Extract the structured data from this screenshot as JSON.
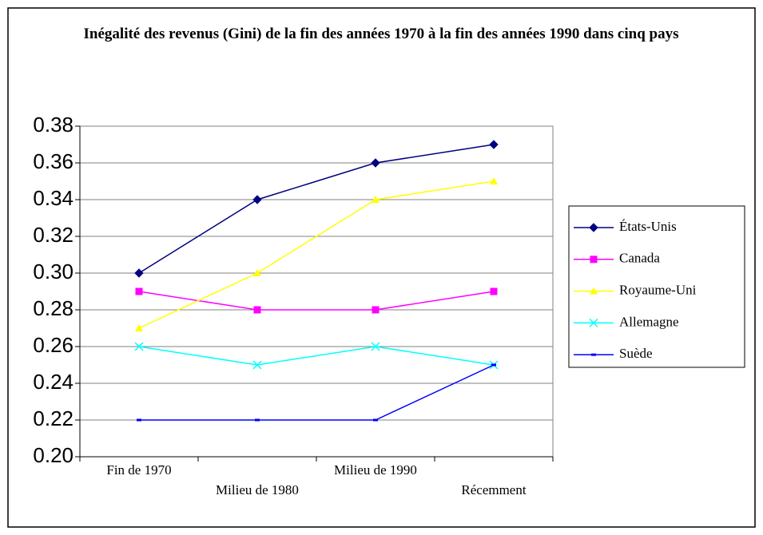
{
  "chart_data": {
    "type": "line",
    "title": "Inégalité des revenus (Gini) de la fin des années 1970 à la fin des années 1990 dans cinq pays",
    "categories": [
      "Fin de 1970",
      "Milieu de 1980",
      "Milieu de 1990",
      "Récemment"
    ],
    "series": [
      {
        "name": "États-Unis",
        "color": "#000080",
        "marker": "diamond",
        "values": [
          0.3,
          0.34,
          0.36,
          0.37
        ]
      },
      {
        "name": "Canada",
        "color": "#ff00ff",
        "marker": "square",
        "values": [
          0.29,
          0.28,
          0.28,
          0.29
        ]
      },
      {
        "name": "Royaume-Uni",
        "color": "#ffff00",
        "marker": "triangle",
        "values": [
          0.27,
          0.3,
          0.34,
          0.35
        ]
      },
      {
        "name": "Allemagne",
        "color": "#00ffff",
        "marker": "x",
        "values": [
          0.26,
          0.25,
          0.26,
          0.25
        ]
      },
      {
        "name": "Suède",
        "color": "#0000ff",
        "marker": "dash",
        "values": [
          0.22,
          0.22,
          0.22,
          0.25
        ]
      }
    ],
    "ylim": [
      0.2,
      0.38
    ],
    "yticks": [
      {
        "value": 0.2,
        "label": "0.20"
      },
      0.22,
      0.24,
      0.26,
      0.28,
      {
        "value": 0.3,
        "label": "0.30"
      },
      0.32,
      0.34,
      0.36,
      0.38
    ],
    "grid": true,
    "legend": "right"
  }
}
